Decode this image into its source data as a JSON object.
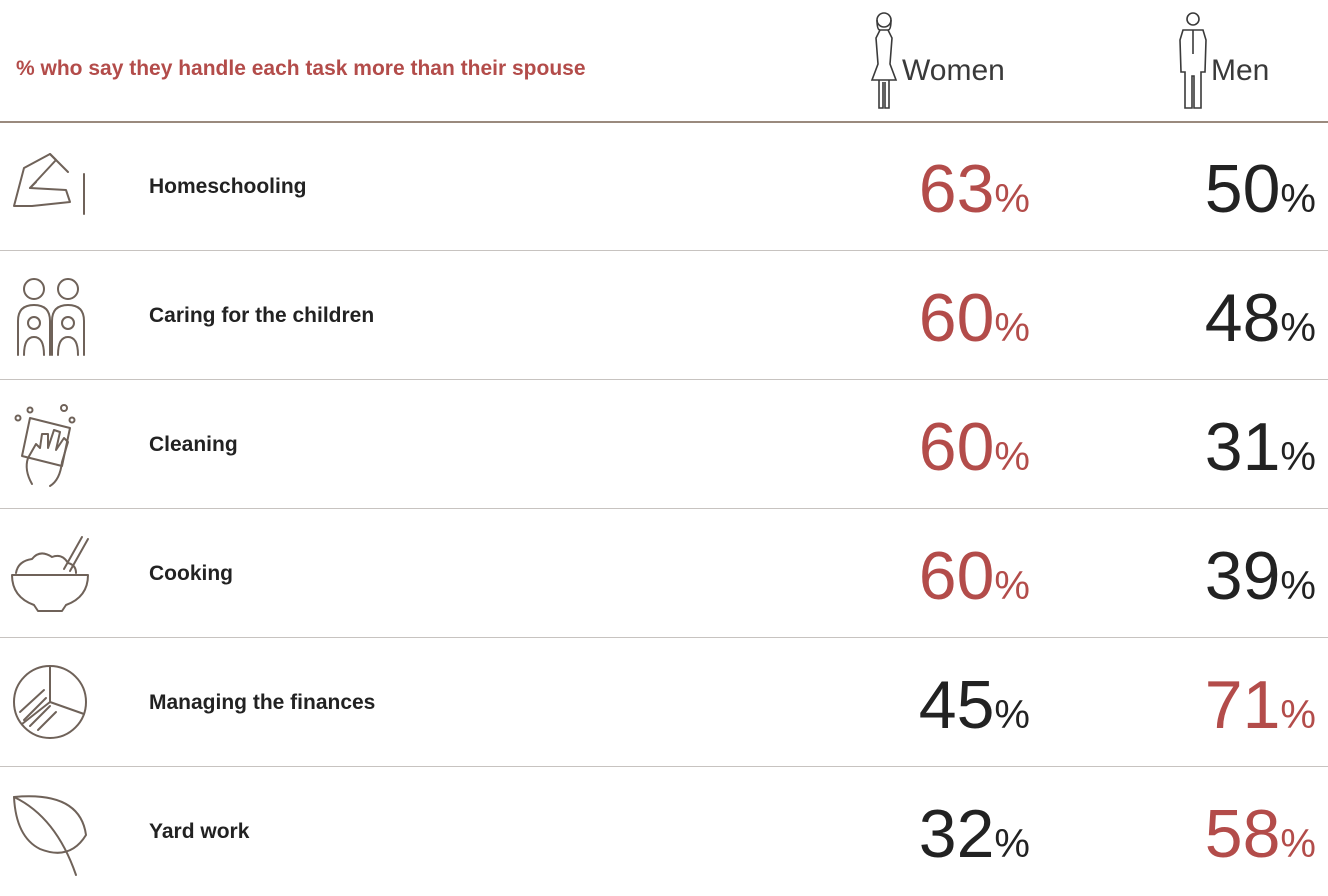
{
  "header": {
    "title": "% who say they handle each task more than their spouse"
  },
  "colors": {
    "accent": "#b34c4a",
    "dark": "#222222",
    "icon": "#6f6259",
    "rule": "#9a8a7e"
  },
  "chart_data": {
    "type": "table",
    "title": "% who say they handle each task more than their spouse",
    "columns": [
      {
        "name": "Women",
        "icon": "woman-icon"
      },
      {
        "name": "Men",
        "icon": "man-icon"
      }
    ],
    "unit": "%",
    "rows": [
      {
        "task": "Homeschooling",
        "icon": "hand-writing-icon",
        "women": 63,
        "men": 50,
        "highlight": "women"
      },
      {
        "task": "Caring for the children",
        "icon": "children-icon",
        "women": 60,
        "men": 48,
        "highlight": "women"
      },
      {
        "task": "Cleaning",
        "icon": "cleaning-hand-icon",
        "women": 60,
        "men": 31,
        "highlight": "women"
      },
      {
        "task": "Cooking",
        "icon": "rice-bowl-icon",
        "women": 60,
        "men": 39,
        "highlight": "women"
      },
      {
        "task": "Managing the finances",
        "icon": "pie-chart-icon",
        "women": 45,
        "men": 71,
        "highlight": "men"
      },
      {
        "task": "Yard work",
        "icon": "leaf-icon",
        "women": 32,
        "men": 58,
        "highlight": "men"
      }
    ]
  }
}
